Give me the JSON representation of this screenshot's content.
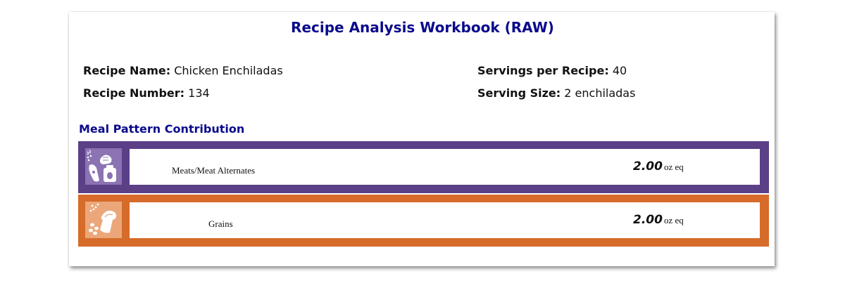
{
  "title": "Recipe Analysis Workbook (RAW)",
  "recipe": {
    "name_label": "Recipe Name:",
    "name_value": "Chicken Enchiladas",
    "number_label": "Recipe Number:",
    "number_value": "134",
    "servings_label": "Servings per Recipe:",
    "servings_value": "40",
    "size_label": "Serving Size:",
    "size_value": "2 enchiladas"
  },
  "meal_pattern": {
    "heading": "Meal Pattern Contribution",
    "components": [
      {
        "label": "Meats/Meat Alternates",
        "amount": "2.00",
        "unit": "oz eq",
        "icon": "meat-alternates-icon",
        "color": "#5b3f87",
        "icon_bg": "#8b73b4"
      },
      {
        "label": "Grains",
        "amount": "2.00",
        "unit": "oz eq",
        "icon": "grains-icon",
        "color": "#d66b2a",
        "icon_bg": "#eba77a"
      }
    ]
  }
}
